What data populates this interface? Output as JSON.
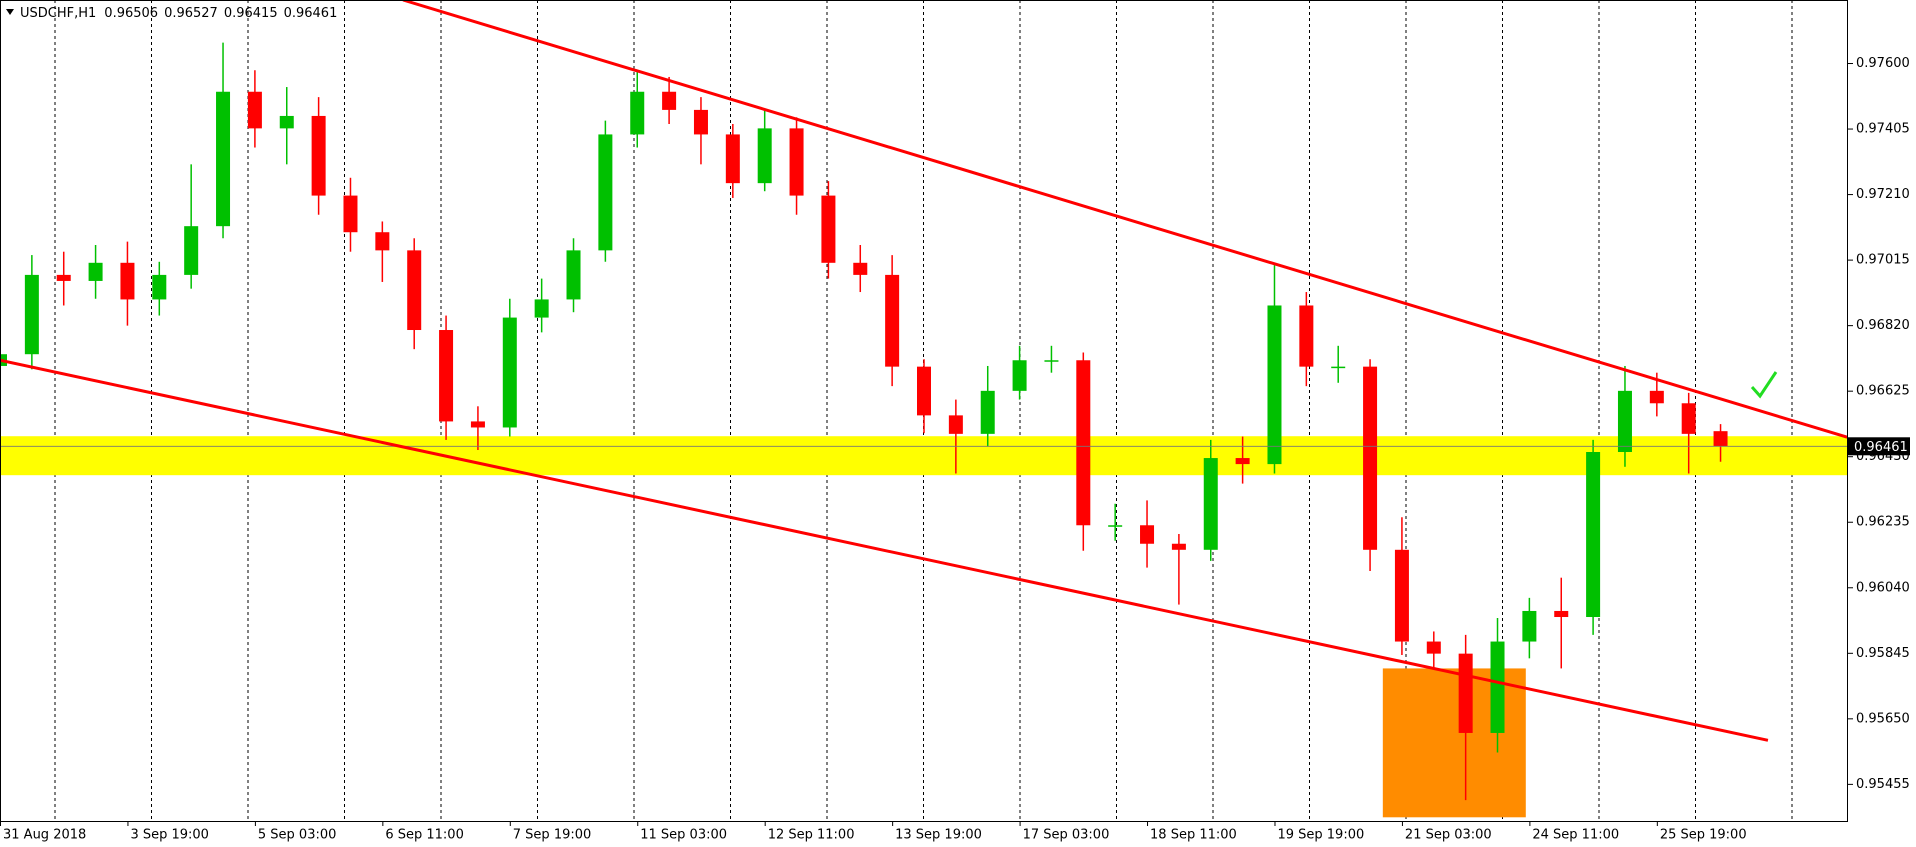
{
  "chart_data": {
    "type": "candlestick",
    "symbol": "USDCHF,H1",
    "up_color": "#00c000",
    "down_color": "#ff0000",
    "x": [
      0,
      8,
      16,
      24,
      32,
      40,
      48,
      56,
      64,
      72,
      80,
      88,
      96,
      104,
      112,
      120,
      128,
      136,
      144,
      152,
      160,
      168,
      176,
      184,
      192,
      200,
      208,
      216,
      224,
      232,
      240,
      248,
      256,
      264,
      272,
      280,
      288,
      296,
      304,
      312,
      320,
      328,
      336,
      344,
      352,
      360,
      368,
      376,
      384,
      392,
      400,
      408,
      416,
      424,
      432
    ],
    "open": [
      0.967,
      0.96735,
      0.96971,
      0.96953,
      0.97007,
      0.96898,
      0.96971,
      0.97116,
      0.97516,
      0.97407,
      0.97444,
      0.97207,
      0.97098,
      0.97044,
      0.96807,
      0.96535,
      0.96517,
      0.96844,
      0.96898,
      0.97044,
      0.97389,
      0.97516,
      0.97462,
      0.97389,
      0.97244,
      0.97407,
      0.97207,
      0.97007,
      0.96971,
      0.96698,
      0.96553,
      0.96498,
      0.96626,
      0.96717,
      0.96717,
      0.96226,
      0.96226,
      0.96171,
      0.96153,
      0.96426,
      0.96408,
      0.9688,
      0.96698,
      0.96698,
      0.96153,
      0.9588,
      0.95844,
      0.95608,
      0.9588,
      0.95971,
      0.95953,
      0.96444,
      0.96626,
      0.96589,
      0.96506
    ],
    "high": [
      0.9679,
      0.9703,
      0.9704,
      0.9706,
      0.9707,
      0.9701,
      0.973,
      0.97662,
      0.9758,
      0.9753,
      0.975,
      0.9726,
      0.9713,
      0.9708,
      0.9685,
      0.9658,
      0.969,
      0.9696,
      0.9708,
      0.9743,
      0.9758,
      0.9756,
      0.975,
      0.9742,
      0.9746,
      0.9744,
      0.9725,
      0.9706,
      0.9703,
      0.9672,
      0.966,
      0.967,
      0.9676,
      0.9676,
      0.9674,
      0.9629,
      0.963,
      0.962,
      0.9648,
      0.9649,
      0.97,
      0.9692,
      0.9676,
      0.9672,
      0.9625,
      0.9591,
      0.959,
      0.9595,
      0.9601,
      0.9607,
      0.9648,
      0.967,
      0.9668,
      0.9662,
      0.96527
    ],
    "low": [
      0.9658,
      0.9669,
      0.9688,
      0.969,
      0.9682,
      0.9685,
      0.9693,
      0.9708,
      0.9735,
      0.973,
      0.9715,
      0.9704,
      0.9695,
      0.9675,
      0.9648,
      0.9645,
      0.9649,
      0.968,
      0.9686,
      0.9701,
      0.9735,
      0.9742,
      0.973,
      0.972,
      0.9722,
      0.9715,
      0.9696,
      0.9692,
      0.9664,
      0.965,
      0.9638,
      0.9646,
      0.966,
      0.9668,
      0.9615,
      0.9618,
      0.961,
      0.9599,
      0.9612,
      0.9635,
      0.9638,
      0.9664,
      0.9665,
      0.9609,
      0.9584,
      0.958,
      0.95408,
      0.9555,
      0.9583,
      0.958,
      0.959,
      0.964,
      0.9655,
      0.9638,
      0.96415
    ],
    "close": [
      0.96735,
      0.96971,
      0.96953,
      0.97007,
      0.96898,
      0.96971,
      0.97116,
      0.97516,
      0.97407,
      0.97444,
      0.97207,
      0.97098,
      0.97044,
      0.96807,
      0.96535,
      0.96517,
      0.96844,
      0.96898,
      0.97044,
      0.97389,
      0.97516,
      0.97462,
      0.97389,
      0.97244,
      0.97407,
      0.97207,
      0.97007,
      0.96971,
      0.96698,
      0.96553,
      0.96498,
      0.96626,
      0.96717,
      0.96717,
      0.96226,
      0.96226,
      0.96171,
      0.96153,
      0.96426,
      0.96408,
      0.9688,
      0.96698,
      0.96698,
      0.96153,
      0.9588,
      0.95844,
      0.95608,
      0.9588,
      0.95971,
      0.95953,
      0.96444,
      0.96626,
      0.96589,
      0.96498,
      0.96461
    ],
    "xlim": [
      0,
      464
    ],
    "xticks": [
      {
        "value": 0,
        "label": "31 Aug 2018"
      },
      {
        "value": 32,
        "label": "3 Sep 19:00"
      },
      {
        "value": 64,
        "label": "5 Sep 03:00"
      },
      {
        "value": 96,
        "label": "6 Sep 11:00"
      },
      {
        "value": 128,
        "label": "7 Sep 19:00"
      },
      {
        "value": 160,
        "label": "11 Sep 03:00"
      },
      {
        "value": 192,
        "label": "12 Sep 11:00"
      },
      {
        "value": 224,
        "label": "13 Sep 19:00"
      },
      {
        "value": 256,
        "label": "17 Sep 03:00"
      },
      {
        "value": 288,
        "label": "18 Sep 11:00"
      },
      {
        "value": 320,
        "label": "19 Sep 19:00"
      },
      {
        "value": 352,
        "label": "21 Sep 03:00"
      },
      {
        "value": 384,
        "label": "24 Sep 11:00"
      },
      {
        "value": 416,
        "label": "25 Sep 19:00"
      }
    ],
    "ylim": [
      0.95346,
      0.97789
    ],
    "yticks": [
      {
        "value": 0.976,
        "label": "0.97600"
      },
      0.97405,
      {
        "value": 0.9721,
        "label": "0.97210"
      },
      0.97015,
      {
        "value": 0.9682,
        "label": "0.96820"
      },
      0.96625,
      {
        "value": 0.9643,
        "label": "0.96430"
      },
      0.96235,
      {
        "value": 0.9604,
        "label": "0.96040"
      },
      0.95845,
      {
        "value": 0.9565,
        "label": "0.95650"
      },
      0.95455
    ],
    "trendlines": [
      {
        "color": "#ff0000",
        "x": [
          101.2,
          463.8
        ],
        "y": [
          0.97789,
          0.96488
        ]
      },
      {
        "color": "#ff0000",
        "x": [
          0,
          443.9
        ],
        "y": [
          0.96717,
          0.95586
        ]
      }
    ],
    "zone": {
      "color": "#ffff00",
      "y": [
        0.96375,
        0.96491
      ]
    },
    "box": {
      "color": "#ff8c00",
      "x": [
        347.2,
        383.1
      ],
      "y": [
        0.95357,
        0.958
      ]
    }
  }
}
